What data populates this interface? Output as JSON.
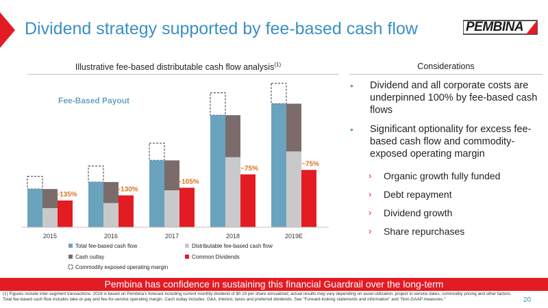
{
  "header": {
    "title": "Dividend strategy supported by fee-based cash flow",
    "logo": "PEMBINA",
    "colors": {
      "title": "#3a8fc4",
      "accent": "#e31b23"
    }
  },
  "chart_section": {
    "title": "Illustrative fee-based distributable cash flow analysis",
    "title_footnote": "(1)"
  },
  "chart_data": {
    "type": "bar",
    "categories": [
      "2015",
      "2016",
      "2017",
      "2018",
      "2019E"
    ],
    "annotation": "Fee-Based Payout",
    "series": [
      {
        "name": "Total fee-based cash flow",
        "color": "#6aa3be",
        "values": [
          60,
          71,
          105,
          176,
          194
        ]
      },
      {
        "name": "Cash outlay",
        "color": "#7b6b6a",
        "values": [
          30,
          33,
          47,
          66,
          75
        ]
      },
      {
        "name": "Distributable fee-based cash flow",
        "color": "#c9c9cb",
        "values": [
          30,
          38,
          58,
          110,
          119
        ]
      },
      {
        "name": "Commodity exposed operating margin",
        "style": "dashed-outline",
        "values": [
          20,
          25,
          27,
          35,
          32
        ]
      },
      {
        "name": "Common Dividends",
        "color": "#e31b23",
        "values": [
          42,
          50,
          62,
          83,
          90
        ]
      }
    ],
    "data_labels": [
      "~135%",
      "~130%",
      "~105%",
      "~75%",
      "~75%"
    ],
    "legend": {
      "position": "bottom",
      "items": [
        {
          "label": "Total fee-based cash flow",
          "color": "#6aa3be",
          "style": "solid"
        },
        {
          "label": "Distributable fee-based cash flow",
          "color": "#c9c9cb",
          "style": "solid"
        },
        {
          "label": "Cash outlay",
          "color": "#7b6b6a",
          "style": "solid"
        },
        {
          "label": "Common Dividends",
          "color": "#e31b23",
          "style": "solid"
        },
        {
          "label": "Commodity exposed operating margin",
          "color": "#333333",
          "style": "dashed"
        }
      ]
    },
    "ylim": [
      0,
      230
    ],
    "grid": false,
    "yaxis_visible": false
  },
  "considerations": {
    "title": "Considerations",
    "bullets": [
      "Dividend and all corporate costs are underpinned 100% by fee-based cash flows",
      "Significant optionality for excess fee-based cash flow and commodity-exposed operating margin"
    ],
    "sub_bullets": [
      "Organic growth fully funded",
      "Debt repayment",
      "Dividend growth",
      "Share repurchases"
    ]
  },
  "banner": "Pembina has confidence in sustaining this financial Guardrail over the long-term",
  "footnotes": [
    "(1) Figures include inter-segment transactions.  2019 is based on Pembina's forecast including current monthly dividend of $0.19 per share annualized; actual results may vary depending on asset utilization, project in-service dates, commodity pricing and other factors.",
    "Total fee-based cash flow includes take-or-pay and fee-for-service operating margin.  Cash outlay includes: G&A, interest, taxes and preferred dividends.  See \"Forward-looking statements and information\" and \"Non-GAAP measures.\""
  ],
  "page_number": "20"
}
